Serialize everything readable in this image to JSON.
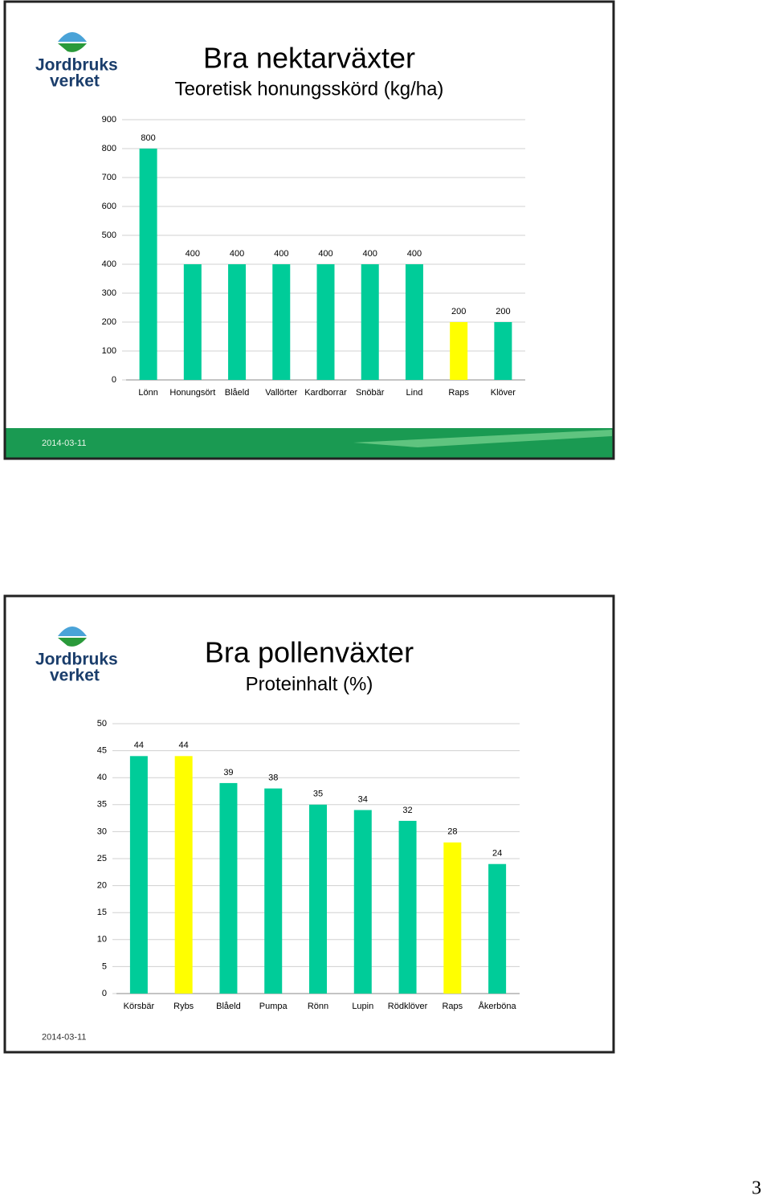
{
  "slides": [
    {
      "logo": [
        "Jordbruks",
        "verket"
      ],
      "date": "2014-03-11"
    },
    {
      "logo": [
        "Jordbruks",
        "verket"
      ],
      "date": "2014-03-11"
    }
  ],
  "page_number": "3",
  "chart_data": [
    {
      "type": "bar",
      "title": "Bra nektarväxter",
      "subtitle": "Teoretisk honungsskörd (kg/ha)",
      "categories": [
        "Lönn",
        "Honungsört",
        "Blåeld",
        "Vallörter",
        "Kardborrar",
        "Snöbär",
        "Lind",
        "Raps",
        "Klöver"
      ],
      "values": [
        800,
        400,
        400,
        400,
        400,
        400,
        400,
        200,
        200
      ],
      "colors": [
        "#00cc99",
        "#00cc99",
        "#00cc99",
        "#00cc99",
        "#00cc99",
        "#00cc99",
        "#00cc99",
        "#ffff00",
        "#00cc99"
      ],
      "ylim": [
        0,
        900
      ],
      "yticks": [
        0,
        100,
        200,
        300,
        400,
        500,
        600,
        700,
        800,
        900
      ],
      "grid": true
    },
    {
      "type": "bar",
      "title": "Bra pollenväxter",
      "subtitle": "Proteinhalt (%)",
      "categories": [
        "Körsbär",
        "Rybs",
        "Blåeld",
        "Pumpa",
        "Rönn",
        "Lupin",
        "Rödklöver",
        "Raps",
        "Åkerböna"
      ],
      "values": [
        44,
        44,
        39,
        38,
        35,
        34,
        32,
        28,
        24
      ],
      "colors": [
        "#00cc99",
        "#ffff00",
        "#00cc99",
        "#00cc99",
        "#00cc99",
        "#00cc99",
        "#00cc99",
        "#ffff00",
        "#00cc99"
      ],
      "ylim": [
        0,
        50
      ],
      "yticks": [
        0,
        5,
        10,
        15,
        20,
        25,
        30,
        35,
        40,
        45,
        50
      ],
      "grid": true
    }
  ]
}
